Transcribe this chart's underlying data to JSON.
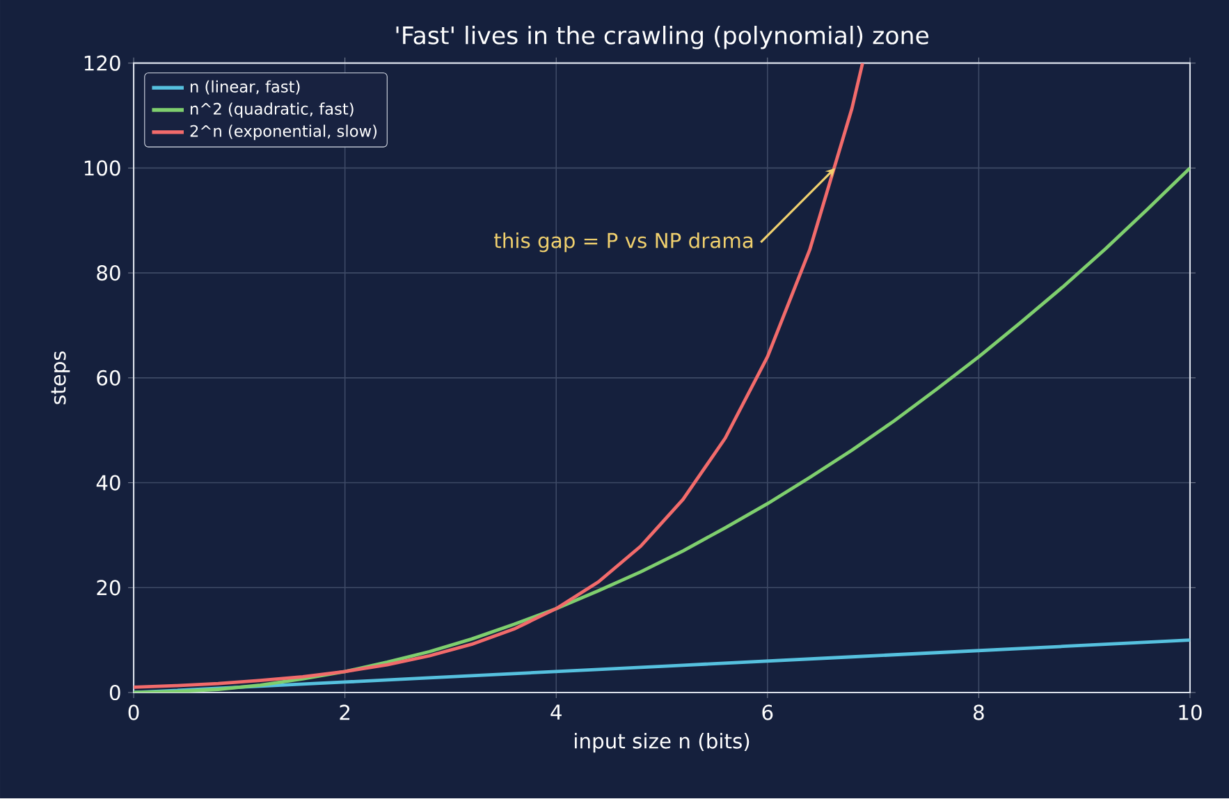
{
  "chart_data": {
    "type": "line",
    "title": "'Fast' lives in the crawling (polynomial) zone",
    "xlabel": "input size n (bits)",
    "ylabel": "steps",
    "x": [
      0,
      0.4,
      0.8,
      1.2,
      1.6,
      2.0,
      2.4,
      2.8,
      3.2,
      3.6,
      4.0,
      4.4,
      4.8,
      5.2,
      5.6,
      6.0,
      6.4,
      6.8,
      7.2,
      7.6,
      8.0,
      8.4,
      8.8,
      9.2,
      9.6,
      10.0
    ],
    "series": [
      {
        "name": "n (linear, fast)",
        "color": "#56c1df",
        "values": [
          0,
          0.4,
          0.8,
          1.2,
          1.6,
          2.0,
          2.4,
          2.8,
          3.2,
          3.6,
          4.0,
          4.4,
          4.8,
          5.2,
          5.6,
          6.0,
          6.4,
          6.8,
          7.2,
          7.6,
          8.0,
          8.4,
          8.8,
          9.2,
          9.6,
          10.0
        ]
      },
      {
        "name": "n^2 (quadratic, fast)",
        "color": "#7fcf6e",
        "values": [
          0,
          0.2,
          0.6,
          1.4,
          2.6,
          4,
          5.8,
          7.8,
          10.2,
          13,
          16,
          19.4,
          23,
          27,
          31.4,
          36,
          41,
          46.2,
          51.8,
          57.8,
          64,
          70.6,
          77.4,
          84.6,
          92.2,
          100
        ]
      },
      {
        "name": "2^n (exponential, slow)",
        "color": "#f26b6b",
        "x": [
          0,
          0.4,
          0.8,
          1.2,
          1.6,
          2.0,
          2.4,
          2.8,
          3.2,
          3.6,
          4.0,
          4.4,
          4.8,
          5.2,
          5.6,
          6.0,
          6.4,
          6.8,
          6.9
        ],
        "values": [
          1,
          1.3,
          1.7,
          2.3,
          3,
          4,
          5.3,
          7,
          9.2,
          12.1,
          16,
          21.1,
          27.9,
          36.8,
          48.5,
          64,
          84.4,
          111.4,
          120
        ]
      }
    ],
    "xlim": [
      0,
      10
    ],
    "ylim": [
      0,
      120
    ],
    "xticks": [
      0,
      2,
      4,
      6,
      8,
      10
    ],
    "yticks": [
      0,
      20,
      40,
      60,
      80,
      100,
      120
    ],
    "grid": true,
    "legend": "top left",
    "annotations": [
      {
        "text": "this gap = P vs NP drama",
        "x": 6.64,
        "y": 100
      }
    ]
  }
}
